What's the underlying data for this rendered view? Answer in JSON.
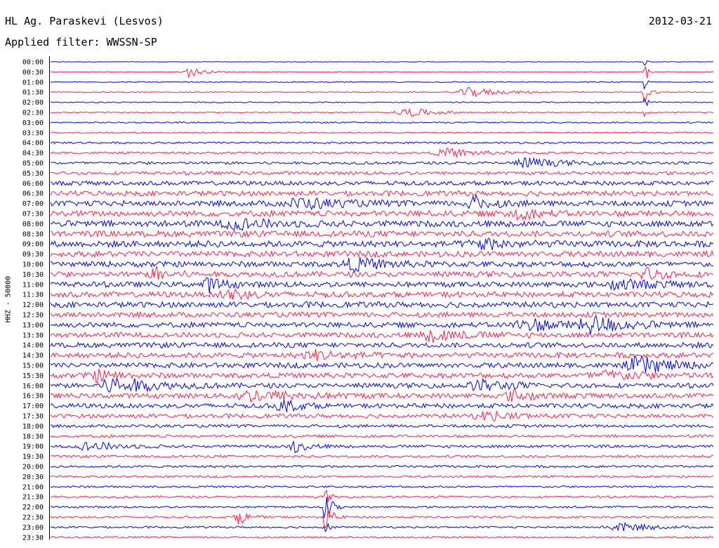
{
  "header": {
    "station": "HL Ag. Paraskevi (Lesvos)",
    "filter": "Applied filter: WWSSN-SP",
    "date": "2012-03-21"
  },
  "colors": {
    "even": "#0000ee",
    "odd": "#ff1a4d"
  },
  "chart_data": {
    "type": "line",
    "title": "HL Ag. Paraskevi (Lesvos)",
    "subtitle": "Applied filter: WWSSN-SP",
    "ylabel": "HHZ - 50000",
    "xlabel": "",
    "grid": false,
    "tick_labels": [
      "00:00",
      "00:30",
      "01:00",
      "01:30",
      "02:00",
      "02:30",
      "03:00",
      "03:30",
      "04:00",
      "04:30",
      "05:00",
      "05:30",
      "06:00",
      "06:30",
      "07:00",
      "07:30",
      "08:00",
      "08:30",
      "09:00",
      "09:30",
      "10:00",
      "10:30",
      "11:00",
      "11:30",
      "12:00",
      "12:30",
      "13:00",
      "13:30",
      "14:00",
      "14:30",
      "15:00",
      "15:30",
      "16:00",
      "16:30",
      "17:00",
      "17:30",
      "18:00",
      "18:30",
      "19:00",
      "19:30",
      "20:00",
      "20:30",
      "21:00",
      "21:30",
      "22:00",
      "22:30",
      "23:00",
      "23:30"
    ],
    "noise_level": [
      0.3,
      0.5,
      0.6,
      0.6,
      0.7,
      0.6,
      0.9,
      0.9,
      1.2,
      1.4,
      1.8,
      2.2,
      2.8,
      3.2,
      3.6,
      3.8,
      4.0,
      4.0,
      4.0,
      3.8,
      3.6,
      3.6,
      3.6,
      3.6,
      3.6,
      3.4,
      3.4,
      3.4,
      3.4,
      3.4,
      3.4,
      3.4,
      3.2,
      3.2,
      3.0,
      2.6,
      2.0,
      1.8,
      1.8,
      1.6,
      1.5,
      1.4,
      1.3,
      1.3,
      1.3,
      1.3,
      1.2,
      1.2
    ],
    "events": [
      {
        "row": 1,
        "t": 0.21,
        "amp": 8,
        "width": 0.012
      },
      {
        "row": 0,
        "t": 0.895,
        "amp": 14,
        "width": 0.002
      },
      {
        "row": 1,
        "t": 0.896,
        "amp": 24,
        "width": 0.003
      },
      {
        "row": 2,
        "t": 0.896,
        "amp": 10,
        "width": 0.002
      },
      {
        "row": 3,
        "t": 0.897,
        "amp": 18,
        "width": 0.005
      },
      {
        "row": 4,
        "t": 0.896,
        "amp": 10,
        "width": 0.003
      },
      {
        "row": 5,
        "t": 0.896,
        "amp": 8,
        "width": 0.003
      },
      {
        "row": 3,
        "t": 0.635,
        "amp": 7,
        "width": 0.03
      },
      {
        "row": 5,
        "t": 0.54,
        "amp": 6,
        "width": 0.03
      },
      {
        "row": 9,
        "t": 0.6,
        "amp": 6,
        "width": 0.03
      },
      {
        "row": 10,
        "t": 0.72,
        "amp": 7,
        "width": 0.03
      },
      {
        "row": 14,
        "t": 0.38,
        "amp": 7,
        "width": 0.04
      },
      {
        "row": 14,
        "t": 0.64,
        "amp": 9,
        "width": 0.02
      },
      {
        "row": 15,
        "t": 0.7,
        "amp": 9,
        "width": 0.02
      },
      {
        "row": 16,
        "t": 0.28,
        "amp": 7,
        "width": 0.03
      },
      {
        "row": 18,
        "t": 0.65,
        "amp": 7,
        "width": 0.03
      },
      {
        "row": 20,
        "t": 0.46,
        "amp": 8,
        "width": 0.03
      },
      {
        "row": 21,
        "t": 0.16,
        "amp": 9,
        "width": 0.015
      },
      {
        "row": 21,
        "t": 0.9,
        "amp": 8,
        "width": 0.02
      },
      {
        "row": 22,
        "t": 0.24,
        "amp": 9,
        "width": 0.015
      },
      {
        "row": 22,
        "t": 0.86,
        "amp": 7,
        "width": 0.03
      },
      {
        "row": 23,
        "t": 0.27,
        "amp": 8,
        "width": 0.02
      },
      {
        "row": 26,
        "t": 0.72,
        "amp": 9,
        "width": 0.03
      },
      {
        "row": 26,
        "t": 0.82,
        "amp": 11,
        "width": 0.035
      },
      {
        "row": 27,
        "t": 0.58,
        "amp": 8,
        "width": 0.03
      },
      {
        "row": 29,
        "t": 0.4,
        "amp": 6,
        "width": 0.03
      },
      {
        "row": 30,
        "t": 0.89,
        "amp": 12,
        "width": 0.03
      },
      {
        "row": 31,
        "t": 0.07,
        "amp": 7,
        "width": 0.02
      },
      {
        "row": 31,
        "t": 0.84,
        "amp": 6,
        "width": 0.04
      },
      {
        "row": 32,
        "t": 0.1,
        "amp": 12,
        "width": 0.035
      },
      {
        "row": 32,
        "t": 0.65,
        "amp": 7,
        "width": 0.03
      },
      {
        "row": 33,
        "t": 0.31,
        "amp": 7,
        "width": 0.05
      },
      {
        "row": 33,
        "t": 0.7,
        "amp": 8,
        "width": 0.02
      },
      {
        "row": 34,
        "t": 0.35,
        "amp": 10,
        "width": 0.015
      },
      {
        "row": 35,
        "t": 0.66,
        "amp": 6,
        "width": 0.03
      },
      {
        "row": 38,
        "t": 0.06,
        "amp": 6,
        "width": 0.03
      },
      {
        "row": 38,
        "t": 0.37,
        "amp": 8,
        "width": 0.015
      },
      {
        "row": 44,
        "t": 0.415,
        "amp": 26,
        "width": 0.006
      },
      {
        "row": 45,
        "t": 0.415,
        "amp": 20,
        "width": 0.006
      },
      {
        "row": 45,
        "t": 0.285,
        "amp": 10,
        "width": 0.01
      },
      {
        "row": 43,
        "t": 0.415,
        "amp": 12,
        "width": 0.004
      },
      {
        "row": 46,
        "t": 0.415,
        "amp": 8,
        "width": 0.005
      },
      {
        "row": 46,
        "t": 0.86,
        "amp": 6,
        "width": 0.03
      }
    ]
  }
}
